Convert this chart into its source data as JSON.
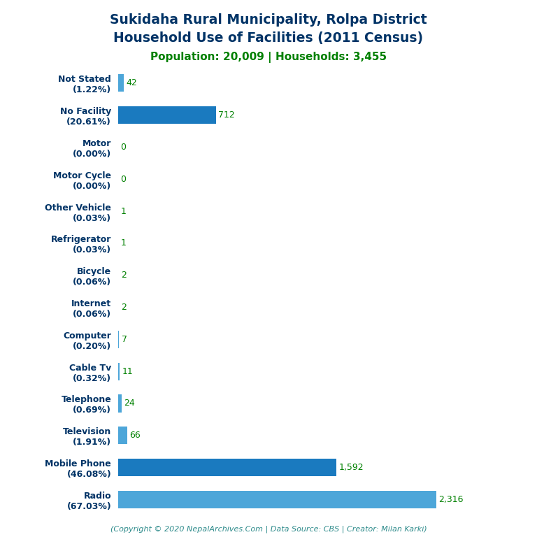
{
  "title_line1": "Sukidaha Rural Municipality, Rolpa District",
  "title_line2": "Household Use of Facilities (2011 Census)",
  "subtitle": "Population: 20,009 | Households: 3,455",
  "title_color": "#003366",
  "subtitle_color": "#008000",
  "footer": "(Copyright © 2020 NepalArchives.Com | Data Source: CBS | Creator: Milan Karki)",
  "footer_color": "#2e8b8b",
  "categories": [
    "Not Stated\n(1.22%)",
    "No Facility\n(20.61%)",
    "Motor\n(0.00%)",
    "Motor Cycle\n(0.00%)",
    "Other Vehicle\n(0.03%)",
    "Refrigerator\n(0.03%)",
    "Bicycle\n(0.06%)",
    "Internet\n(0.06%)",
    "Computer\n(0.20%)",
    "Cable Tv\n(0.32%)",
    "Telephone\n(0.69%)",
    "Television\n(1.91%)",
    "Mobile Phone\n(46.08%)",
    "Radio\n(67.03%)"
  ],
  "values": [
    42,
    712,
    0,
    0,
    1,
    1,
    2,
    2,
    7,
    11,
    24,
    66,
    1592,
    2316
  ],
  "bar_colors": [
    "#4da6d9",
    "#1a7abf",
    "#4da6d9",
    "#4da6d9",
    "#4da6d9",
    "#4da6d9",
    "#4da6d9",
    "#4da6d9",
    "#4da6d9",
    "#4da6d9",
    "#4da6d9",
    "#4da6d9",
    "#1a7abf",
    "#4da6d9"
  ],
  "value_color": "#008000",
  "label_color": "#003366",
  "background_color": "#ffffff",
  "xlim": [
    0,
    2700
  ],
  "bar_height": 0.55,
  "title_fontsize": 13.5,
  "subtitle_fontsize": 11,
  "label_fontsize": 9,
  "value_fontsize": 9,
  "footer_fontsize": 8
}
